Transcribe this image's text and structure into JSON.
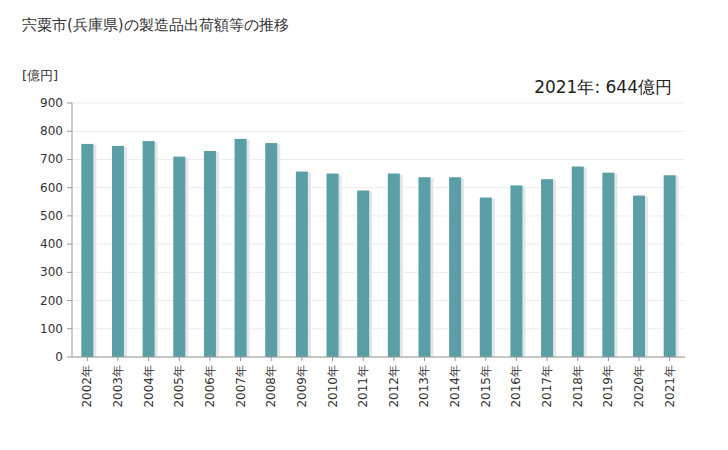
{
  "chart_data": {
    "type": "bar",
    "title": "宍粟市(兵庫県)の製造品出荷額等の推移",
    "y_label": "[億円]",
    "annotation": "2021年: 644億円",
    "categories": [
      "2002年",
      "2003年",
      "2004年",
      "2005年",
      "2006年",
      "2007年",
      "2008年",
      "2009年",
      "2010年",
      "2011年",
      "2012年",
      "2013年",
      "2014年",
      "2015年",
      "2016年",
      "2017年",
      "2018年",
      "2019年",
      "2020年",
      "2021年"
    ],
    "values": [
      755,
      748,
      765,
      710,
      730,
      773,
      758,
      657,
      650,
      590,
      650,
      637,
      637,
      565,
      608,
      630,
      675,
      653,
      572,
      644
    ],
    "color": "#5a9fa6",
    "ylim": [
      0,
      900
    ],
    "yticks": [
      0,
      100,
      200,
      300,
      400,
      500,
      600,
      700,
      800,
      900
    ],
    "grid": true
  }
}
